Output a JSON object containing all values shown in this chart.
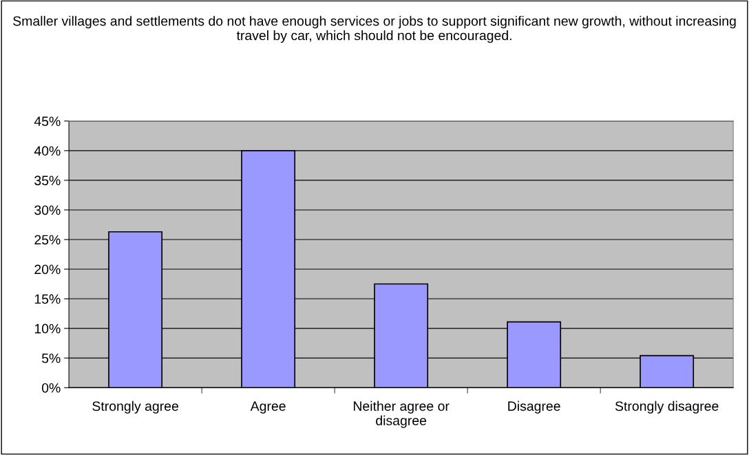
{
  "chart_data": {
    "type": "bar",
    "title": "Smaller villages and settlements do not have enough services or jobs to support significant new growth, without increasing travel by car, which should not be encouraged.",
    "categories": [
      "Strongly agree",
      "Agree",
      "Neither agree or\ndisagree",
      "Disagree",
      "Strongly disagree"
    ],
    "values": [
      26.3,
      40.0,
      17.5,
      11.1,
      5.4
    ],
    "color": "#9999ff",
    "ylim": [
      0,
      45
    ],
    "yticks": [
      {
        "value": 0,
        "label": "0%"
      },
      {
        "value": 5,
        "label": "5%"
      },
      {
        "value": 10,
        "label": "10%"
      },
      {
        "value": 15,
        "label": "15%"
      },
      {
        "value": 20,
        "label": "20%"
      },
      {
        "value": 25,
        "label": "25%"
      },
      {
        "value": 30,
        "label": "30%"
      },
      {
        "value": 35,
        "label": "35%"
      },
      {
        "value": 40,
        "label": "40%"
      },
      {
        "value": 45,
        "label": "45%"
      }
    ],
    "grid": "y"
  }
}
